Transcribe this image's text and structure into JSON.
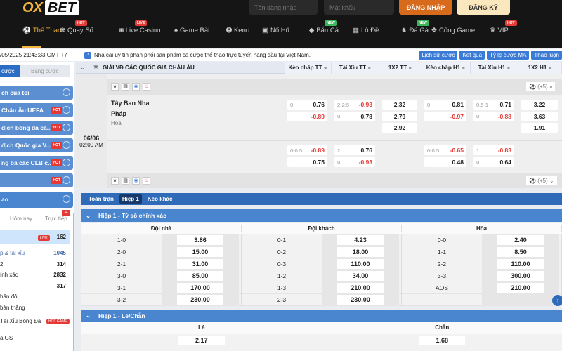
{
  "header": {
    "logo": "OX",
    "logo_box": "BET",
    "username_placeholder": "Tên đăng nhập",
    "password_placeholder": "Mật khẩu",
    "login": "ĐĂNG NHẬP",
    "register": "ĐĂNG KÝ",
    "nav": [
      {
        "label": "Thể Thao",
        "icon": "soccer-ball-icon",
        "active": true
      },
      {
        "label": "Quay Số",
        "icon": "wheel-icon",
        "badge": "HOT"
      },
      {
        "label": "Live Casino",
        "icon": "mask-icon",
        "badge": "LIVE"
      },
      {
        "label": "Game Bài",
        "icon": "spade-icon"
      },
      {
        "label": "Keno",
        "icon": "ball-8-icon"
      },
      {
        "label": "Nổ Hũ",
        "icon": "slot-icon"
      },
      {
        "label": "Bắn Cá",
        "icon": "fish-icon",
        "badge": "NEW"
      },
      {
        "label": "Lô Đề",
        "icon": "lottery-icon"
      },
      {
        "label": "Đá Gà",
        "icon": "rooster-icon",
        "badge": "NEW"
      },
      {
        "label": "Cổng Game",
        "icon": "gamepad-icon"
      },
      {
        "label": "VIP",
        "icon": "crown-icon",
        "badge": "HOT"
      }
    ]
  },
  "info": {
    "datetime": "/05/2025 21:43:33 GMT +7",
    "notice": "Nhà cái uy tín phân phối sản phẩm cá cược thể thao trực tuyến hàng đầu tại Việt Nam.",
    "buttons": [
      "Lịch sử cược",
      "Kết quả",
      "Tỷ lệ cược MA",
      "Thảo luận"
    ]
  },
  "sidebar": {
    "tabs": [
      "cược",
      "Bảng cược"
    ],
    "items": [
      "ch của tôi",
      "Châu Âu UEFA",
      "địch bóng đá cá...",
      "địch Quốc gia V...",
      "ng ba các CLB c...",
      ""
    ],
    "sport": "ao",
    "filters": [
      "Hôm nay",
      "Trực tiếp"
    ],
    "live_count": "34",
    "markets": [
      {
        "label": "",
        "count": "162",
        "live": "LIVE"
      },
      {
        "label": "p & tài xỉu",
        "count": "1045"
      },
      {
        "label": "2",
        "count": "314"
      },
      {
        "label": "ính xác",
        "count": "2832"
      },
      {
        "label": "",
        "count": "317"
      },
      {
        "label": "hần đôi",
        "count": ""
      },
      {
        "label": "bàn thắng",
        "count": ""
      }
    ],
    "promo1": "Tài Xỉu Bóng Đá",
    "promo1_badge": "HOT GAME",
    "promo2": "á GS"
  },
  "league": "GIẢI VĐ CÁC QUỐC GIA CHÂU ÂU",
  "columns": [
    "Kèo chấp TT",
    "Tài Xỉu TT",
    "1X2 TT",
    "Kèo chấp H1",
    "Tài Xỉu H1",
    "1X2 H1"
  ],
  "match": {
    "date": "06/06",
    "time": "02:00 AM",
    "home": "Tây Ban Nha",
    "away": "Pháp",
    "draw": "Hòa",
    "more": "(+5)",
    "row1": {
      "hcap_tt": [
        [
          "0",
          "0.76"
        ],
        [
          "",
          "-0.89"
        ]
      ],
      "ou_tt": [
        [
          "2-2.5",
          "-0.93"
        ],
        [
          "u",
          "0.78"
        ]
      ],
      "x12_tt": [
        "2.32",
        "2.79",
        "2.92"
      ],
      "hcap_h1": [
        [
          "0",
          "0.81"
        ],
        [
          "",
          "-0.97"
        ]
      ],
      "ou_h1": [
        [
          "0.5-1",
          "0.71"
        ],
        [
          "u",
          "-0.88"
        ]
      ],
      "x12_h1": [
        "3.22",
        "3.63",
        "1.91"
      ]
    },
    "row2": {
      "hcap_tt": [
        [
          "0-0.5",
          "-0.89"
        ],
        [
          "",
          "0.75"
        ]
      ],
      "ou_tt": [
        [
          "2",
          "0.76"
        ],
        [
          "u",
          "-0.93"
        ]
      ],
      "hcap_h1": [
        [
          "0-0.5",
          "-0.65"
        ],
        [
          "",
          "0.48"
        ]
      ],
      "ou_h1": [
        [
          "1",
          "-0.83"
        ],
        [
          "u",
          "0.64"
        ]
      ]
    }
  },
  "bet_tabs": [
    "Toàn trận",
    "Hiệp 1",
    "Kèo khác"
  ],
  "correct_score": {
    "title": "Hiệp 1 - Tỷ số chính xác",
    "headers": [
      "Đội nhà",
      "Đội khách",
      "Hòa"
    ],
    "rows": [
      [
        [
          "1-0",
          "3.86"
        ],
        [
          "0-1",
          "4.23"
        ],
        [
          "0-0",
          "2.40"
        ]
      ],
      [
        [
          "2-0",
          "15.00"
        ],
        [
          "0-2",
          "18.00"
        ],
        [
          "1-1",
          "8.50"
        ]
      ],
      [
        [
          "2-1",
          "31.00"
        ],
        [
          "0-3",
          "110.00"
        ],
        [
          "2-2",
          "110.00"
        ]
      ],
      [
        [
          "3-0",
          "85.00"
        ],
        [
          "1-2",
          "34.00"
        ],
        [
          "3-3",
          "300.00"
        ]
      ],
      [
        [
          "3-1",
          "170.00"
        ],
        [
          "1-3",
          "210.00"
        ],
        [
          "AOS",
          "210.00"
        ]
      ],
      [
        [
          "3-2",
          "230.00"
        ],
        [
          "2-3",
          "230.00"
        ],
        [
          "",
          ""
        ]
      ]
    ]
  },
  "odd_even": {
    "title": "Hiệp 1 - Lẻ/Chẵn",
    "headers": [
      "Lẻ",
      "Chẵn"
    ],
    "values": [
      "2.17",
      "1.68"
    ]
  },
  "colors": {
    "accent": "#4a86cf",
    "brand": "#f2b63c",
    "login": "#d86a1c",
    "negative": "#e53935"
  }
}
